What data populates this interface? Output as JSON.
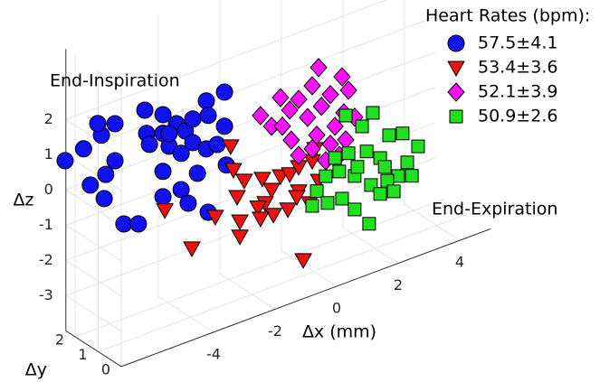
{
  "chart_data": {
    "type": "scatter3d",
    "xlabel": "Δx (mm)",
    "ylabel": "Δy",
    "zlabel": "Δz",
    "xlim": [
      -7,
      5
    ],
    "ylim": [
      0,
      2.4
    ],
    "zlim": [
      -4,
      4
    ],
    "xticks": [
      -4,
      -2,
      0,
      2,
      4
    ],
    "yticks": [
      0,
      1,
      2
    ],
    "zticks": [
      -3,
      -2,
      -1,
      0,
      1,
      2
    ],
    "grid": true,
    "legend": "upper right",
    "legend_title": "Heart Rates (bpm):",
    "annotations": [
      "End-Inspiration",
      "End-Expiration"
    ],
    "series": [
      {
        "name": "57.5±4.1",
        "color": "#1010f0",
        "marker": "o",
        "x": [
          -7.7,
          -7.1,
          -6.52,
          -6.08,
          -6.64,
          -6.88,
          -6.43,
          -6.08,
          -6.38,
          -5.79,
          -5.32,
          -5.11,
          -4.52,
          -5.05,
          -4.52,
          -4.08,
          -3.79,
          -3.55,
          -3.11,
          -2.52,
          -3.05,
          -3.55,
          -4.32,
          -4.96,
          -3.93,
          -3.11,
          -2.76,
          -2.52,
          -3.4,
          -4.52,
          -3.93,
          -4.52,
          -3.05,
          -3.7,
          -2.46,
          -4.32
        ],
        "y": [
          1.5,
          1.5,
          1.5,
          1.5,
          1.5,
          1.5,
          1.5,
          1.5,
          1.5,
          1.5,
          1.5,
          1.5,
          1.5,
          1.5,
          1.5,
          1.5,
          1.5,
          1.5,
          1.5,
          1.5,
          1.5,
          1.5,
          1.5,
          1.5,
          1.5,
          1.5,
          1.5,
          1.5,
          1.5,
          1.5,
          1.5,
          1.5,
          1.5,
          1.5,
          1.5,
          1.5
        ],
        "z": [
          1.44,
          1.58,
          1.78,
          1.96,
          2.15,
          0.48,
          -0.05,
          0.91,
          0.62,
          -0.98,
          -1.13,
          2.03,
          1.71,
          1.35,
          1.18,
          1.31,
          1.01,
          1.27,
          1.64,
          1.7,
          1.21,
          0.6,
          0.75,
          1.01,
          0.42,
          0.28,
          0.29,
          0.73,
          -0.32,
          0.1,
          -0.61,
          -0.62,
          -1.54,
          -1.07,
          -0.39,
          1.11
        ]
      },
      {
        "name": "53.4±3.6",
        "color": "#f01010",
        "marker": "v",
        "x": [
          -2.32,
          -2.23,
          -1.88,
          -2.11,
          -1.29,
          -0.99,
          -1.2,
          -0.7,
          -0.4,
          -0.11,
          -0.46,
          -0.93,
          -1.43,
          -1.35,
          -0.11,
          0.33,
          0.54,
          0.24,
          -2.02,
          -2.82,
          -3.58,
          -2.02,
          0.04,
          -4.46,
          -0.17,
          0.42
        ],
        "y": [
          1.5,
          1.5,
          1.5,
          1.5,
          1.5,
          1.5,
          1.5,
          1.5,
          1.5,
          1.5,
          1.5,
          1.5,
          1.5,
          1.5,
          1.5,
          1.5,
          1.5,
          1.5,
          1.5,
          1.5,
          1.5,
          1.5,
          1.5,
          1.5,
          1.5,
          1.5
        ],
        "z": [
          0.1,
          -0.6,
          -1.02,
          -1.41,
          -1.16,
          -1.57,
          -1.88,
          -1.28,
          -1.32,
          -1.9,
          -2.3,
          -2.3,
          -1.93,
          -2.27,
          -1.21,
          -1.18,
          -1.81,
          -2.35,
          -2.13,
          -1.74,
          -2.39,
          -2.56,
          -3.9,
          -1.02,
          -2.04,
          -0.87
        ]
      },
      {
        "name": "52.1±3.9",
        "color": "#ff10ff",
        "marker": "D",
        "x": [
          0.54,
          1.3,
          0.33,
          0.92,
          -0.11,
          -0.7,
          -0.4,
          -1.35,
          -0.99,
          0.18,
          0.48,
          1.07,
          1.36,
          0.92,
          0.33,
          -0.11,
          -0.35,
          1.42,
          1.71,
          0.77,
          1.21,
          -0.64,
          0.63,
          1.51
        ],
        "y": [
          1.5,
          1.5,
          1.5,
          1.5,
          1.5,
          1.5,
          1.5,
          1.5,
          1.5,
          1.5,
          1.5,
          1.5,
          1.5,
          1.5,
          1.5,
          1.5,
          1.5,
          1.5,
          1.5,
          1.5,
          1.5,
          1.5,
          1.5,
          1.5
        ],
        "z": [
          1.4,
          0.89,
          0.95,
          0.51,
          0.71,
          0.95,
          0.5,
          0.65,
          0.23,
          0.1,
          -0.5,
          -0.44,
          -0.15,
          -0.9,
          -0.84,
          -0.88,
          -0.37,
          -0.94,
          -0.39,
          -1.32,
          -1.31,
          0.12,
          0.27,
          0.44
        ]
      },
      {
        "name": "50.9±2.6",
        "color": "#20e020",
        "marker": "s",
        "x": [
          1.42,
          1.95,
          2.3,
          2.83,
          3.27,
          3.77,
          3.42,
          3.12,
          2.77,
          2.24,
          1.71,
          1.21,
          0.77,
          0.48,
          0.83,
          1.3,
          1.71,
          2.18,
          2.54,
          2.98,
          3.57,
          1.51,
          2.1,
          2.54,
          1.07,
          1.8,
          2.69,
          0.33
        ],
        "y": [
          1.5,
          1.5,
          1.5,
          1.5,
          1.5,
          1.5,
          1.5,
          1.5,
          1.5,
          1.5,
          1.5,
          1.5,
          1.5,
          1.5,
          1.5,
          1.5,
          1.5,
          1.5,
          1.5,
          1.5,
          1.5,
          1.5,
          1.5,
          1.5,
          1.5,
          1.5,
          1.5,
          1.5
        ],
        "z": [
          -0.25,
          -0.73,
          -0.46,
          -1.27,
          -1.36,
          -1.89,
          -2.23,
          -2.52,
          -2.54,
          -2.49,
          -2.06,
          -1.77,
          -1.76,
          -2.09,
          -2.54,
          -2.57,
          -3.01,
          -3.57,
          -2.84,
          -2.91,
          -2.66,
          -1.35,
          -1.49,
          -1.82,
          -1.34,
          -1.83,
          -2.12,
          -2.46
        ]
      }
    ]
  }
}
